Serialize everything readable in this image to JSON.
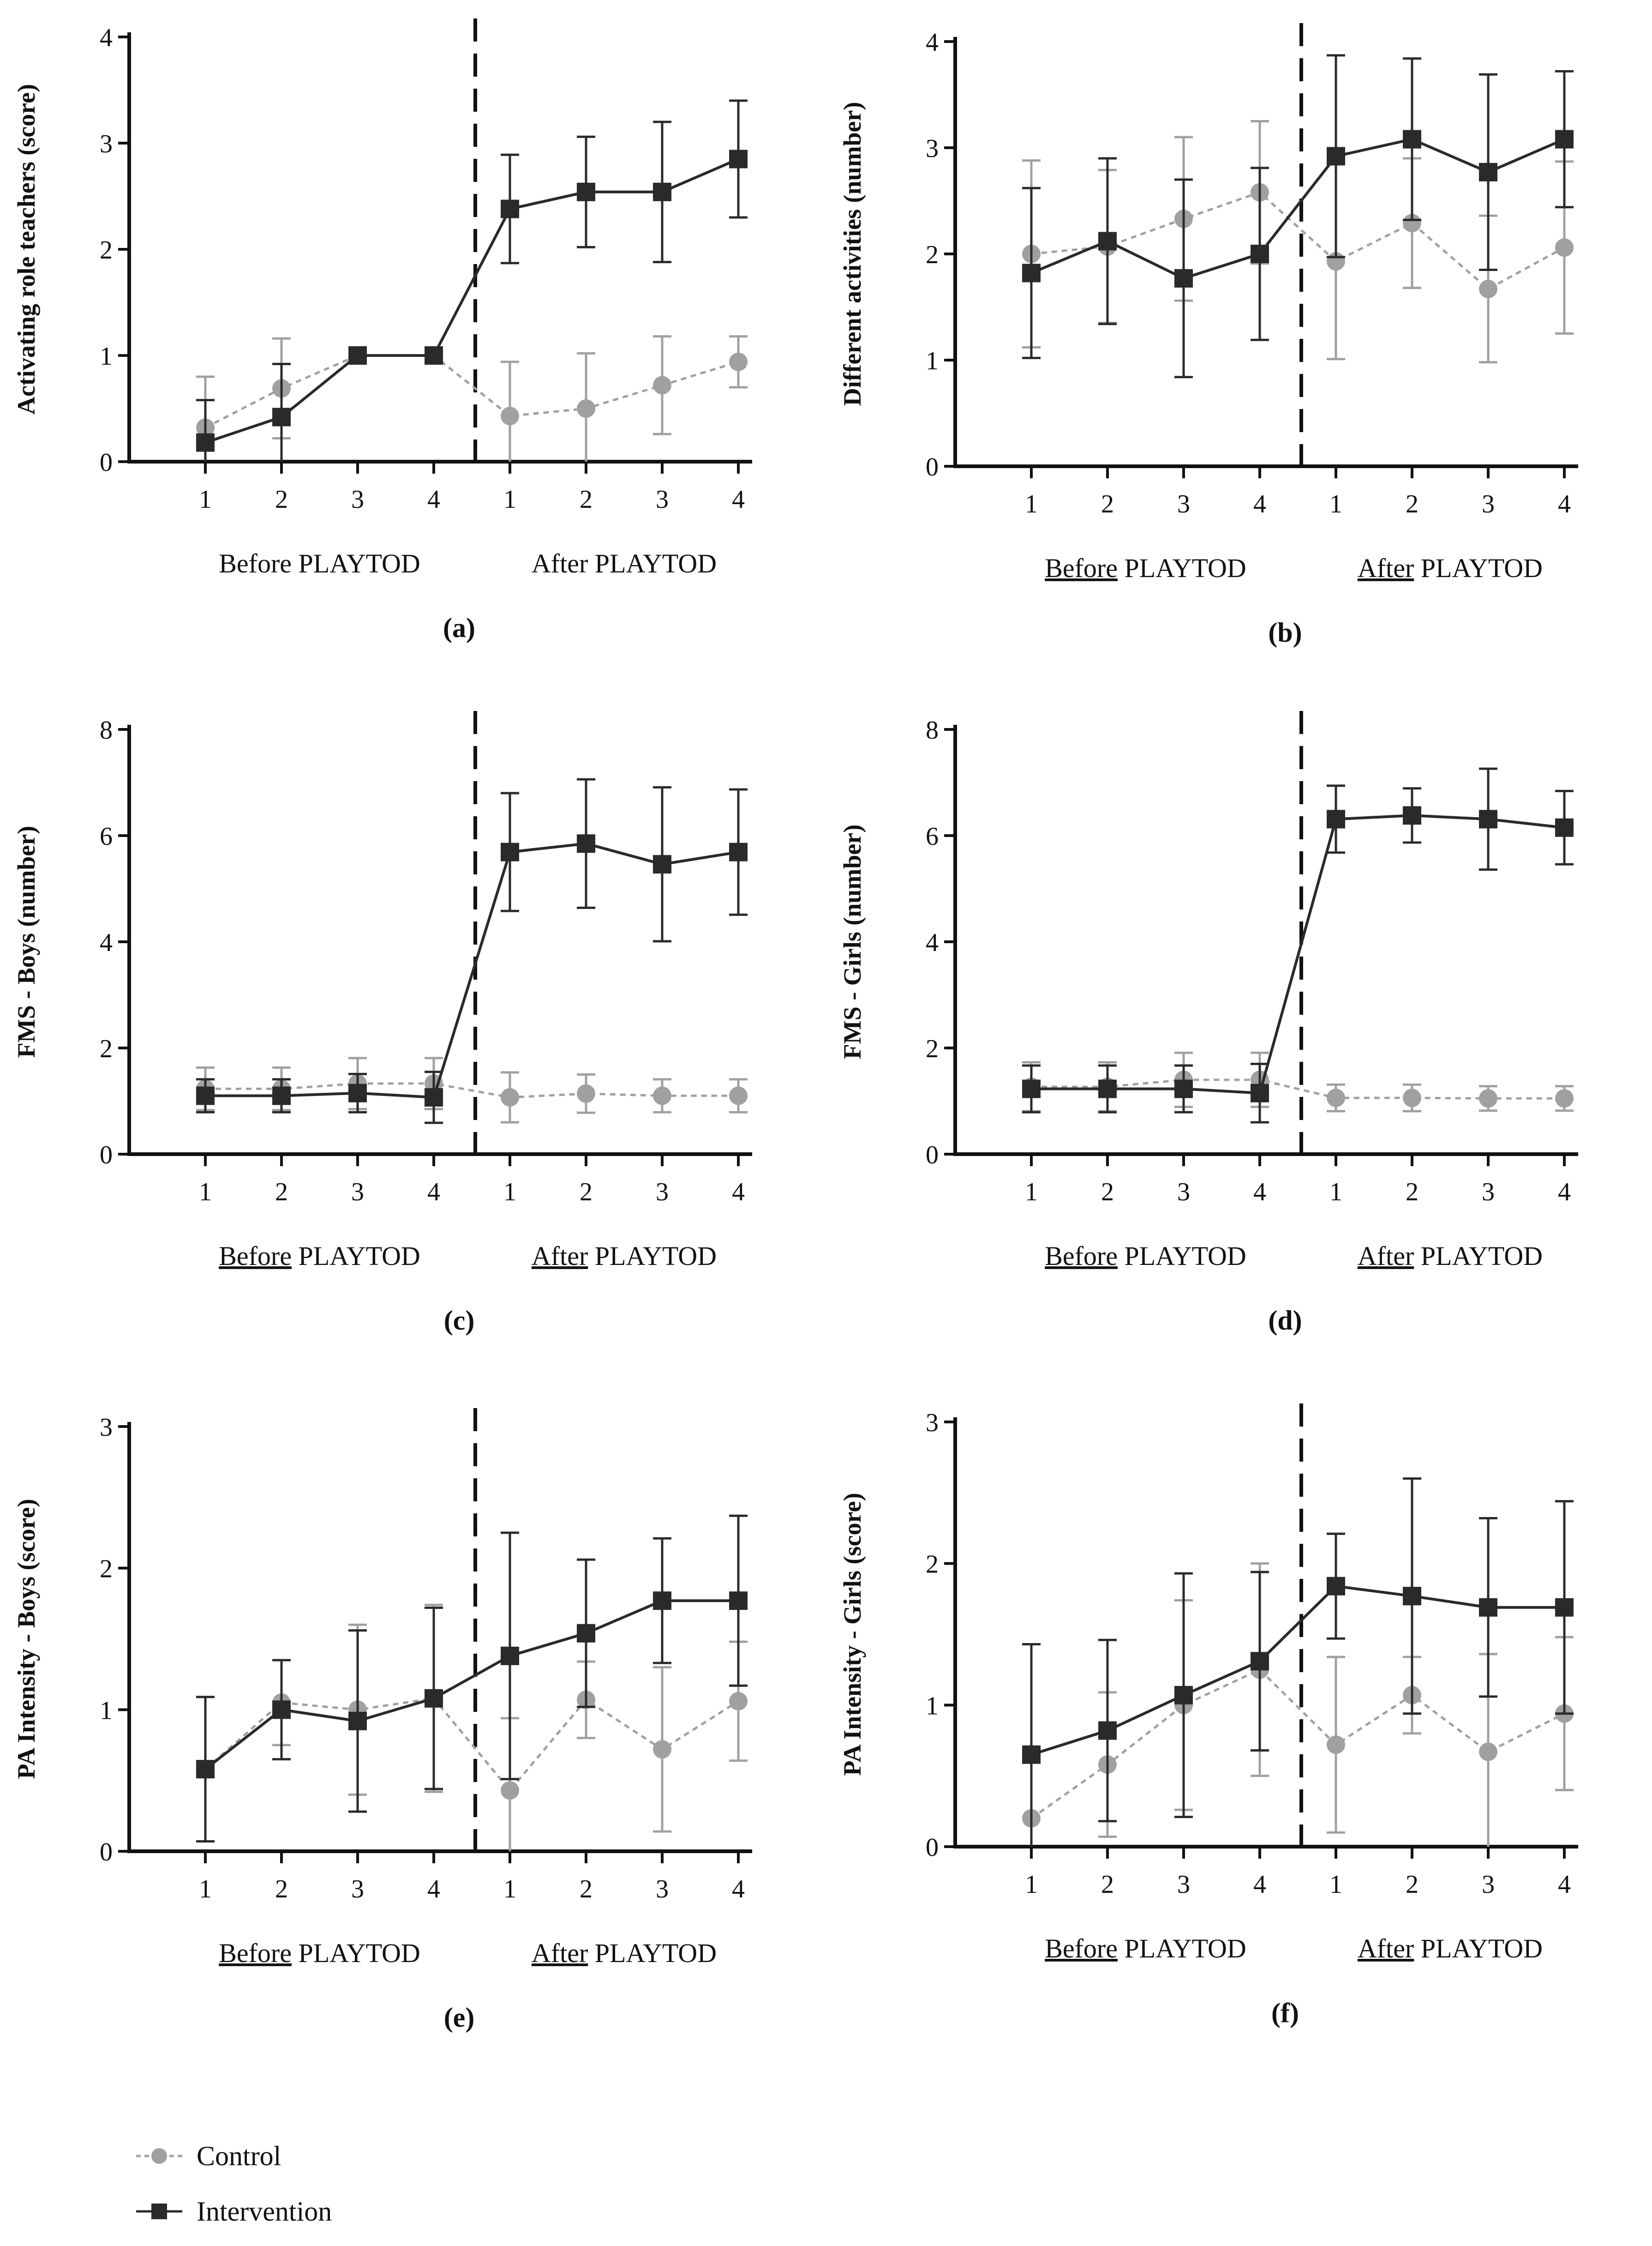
{
  "chart_data": [
    {
      "type": "line",
      "panel_label": "(a)",
      "ylabel": "Activating role teachers (score)",
      "ylim": [
        0,
        4
      ],
      "yticks": [
        0,
        1,
        2,
        3,
        4
      ],
      "categories": [
        "1",
        "2",
        "3",
        "4",
        "1",
        "2",
        "3",
        "4"
      ],
      "groups": [
        {
          "label_underlined": "",
          "label_rest": "Before PLAYTOD"
        },
        {
          "label_underlined": "",
          "label_rest": "After PLAYTOD"
        }
      ],
      "series": [
        {
          "name": "Control",
          "values": [
            0.32,
            0.69,
            1.0,
            1.0,
            0.43,
            0.5,
            0.72,
            0.94
          ],
          "err": [
            0.48,
            0.47,
            0,
            0,
            0.51,
            0.52,
            0.46,
            0.24
          ]
        },
        {
          "name": "Intervention",
          "values": [
            0.18,
            0.42,
            1.0,
            1.0,
            2.38,
            2.54,
            2.54,
            2.85
          ],
          "err": [
            0.4,
            0.5,
            0,
            0,
            0.51,
            0.52,
            0.66,
            0.55
          ]
        }
      ]
    },
    {
      "type": "line",
      "panel_label": "(b)",
      "ylabel": "Different activities (number)",
      "ylim": [
        0,
        4
      ],
      "yticks": [
        0,
        1,
        2,
        3,
        4
      ],
      "categories": [
        "1",
        "2",
        "3",
        "4",
        "1",
        "2",
        "3",
        "4"
      ],
      "groups": [
        {
          "label_underlined": "Before",
          "label_rest": " PLAYTOD"
        },
        {
          "label_underlined": "After",
          "label_rest": " PLAYTOD"
        }
      ],
      "series": [
        {
          "name": "Control",
          "values": [
            2.0,
            2.07,
            2.33,
            2.58,
            1.93,
            2.29,
            1.67,
            2.06
          ],
          "err": [
            0.88,
            0.72,
            0.77,
            0.67,
            0.92,
            0.61,
            0.69,
            0.81
          ]
        },
        {
          "name": "Intervention",
          "values": [
            1.82,
            2.12,
            1.77,
            2.0,
            2.92,
            3.08,
            2.77,
            3.08
          ],
          "err": [
            0.8,
            0.78,
            0.93,
            0.81,
            0.95,
            0.76,
            0.92,
            0.64
          ]
        }
      ]
    },
    {
      "type": "line",
      "panel_label": "(c)",
      "ylabel": "FMS - Boys (number)",
      "ylim": [
        0,
        8
      ],
      "yticks": [
        0,
        2,
        4,
        6,
        8
      ],
      "categories": [
        "1",
        "2",
        "3",
        "4",
        "1",
        "2",
        "3",
        "4"
      ],
      "groups": [
        {
          "label_underlined": "Before",
          "label_rest": " PLAYTOD"
        },
        {
          "label_underlined": "After",
          "label_rest": " PLAYTOD"
        }
      ],
      "series": [
        {
          "name": "Control",
          "values": [
            1.23,
            1.23,
            1.33,
            1.33,
            1.07,
            1.14,
            1.1,
            1.1
          ],
          "err": [
            0.4,
            0.4,
            0.48,
            0.48,
            0.47,
            0.36,
            0.31,
            0.31
          ]
        },
        {
          "name": "Intervention",
          "values": [
            1.1,
            1.1,
            1.15,
            1.07,
            5.69,
            5.85,
            5.46,
            5.69
          ],
          "err": [
            0.31,
            0.31,
            0.36,
            0.48,
            1.11,
            1.21,
            1.45,
            1.18
          ]
        }
      ]
    },
    {
      "type": "line",
      "panel_label": "(d)",
      "ylabel": "FMS - Girls (number)",
      "ylim": [
        0,
        8
      ],
      "yticks": [
        0,
        2,
        4,
        6,
        8
      ],
      "categories": [
        "1",
        "2",
        "3",
        "4",
        "1",
        "2",
        "3",
        "4"
      ],
      "groups": [
        {
          "label_underlined": "Before",
          "label_rest": " PLAYTOD"
        },
        {
          "label_underlined": "After",
          "label_rest": " PLAYTOD"
        }
      ],
      "series": [
        {
          "name": "Control",
          "values": [
            1.27,
            1.27,
            1.4,
            1.4,
            1.06,
            1.06,
            1.05,
            1.05
          ],
          "err": [
            0.46,
            0.46,
            0.51,
            0.51,
            0.25,
            0.25,
            0.23,
            0.23
          ]
        },
        {
          "name": "Intervention",
          "values": [
            1.23,
            1.23,
            1.23,
            1.15,
            6.31,
            6.38,
            6.31,
            6.15
          ],
          "err": [
            0.44,
            0.44,
            0.44,
            0.55,
            0.63,
            0.51,
            0.95,
            0.69
          ]
        }
      ]
    },
    {
      "type": "line",
      "panel_label": "(e)",
      "ylabel": "PA Intensity - Boys (score)",
      "ylim": [
        0,
        3
      ],
      "yticks": [
        0,
        1,
        2,
        3
      ],
      "categories": [
        "1",
        "2",
        "3",
        "4",
        "1",
        "2",
        "3",
        "4"
      ],
      "groups": [
        {
          "label_underlined": "Before",
          "label_rest": " PLAYTOD"
        },
        {
          "label_underlined": "After",
          "label_rest": " PLAYTOD"
        }
      ],
      "series": [
        {
          "name": "Control",
          "values": [
            0.58,
            1.05,
            1.0,
            1.08,
            0.43,
            1.07,
            0.72,
            1.06
          ],
          "err": [
            0.51,
            0.3,
            0.6,
            0.66,
            0.51,
            0.27,
            0.58,
            0.42
          ]
        },
        {
          "name": "Intervention",
          "values": [
            0.58,
            1.0,
            0.92,
            1.08,
            1.38,
            1.54,
            1.77,
            1.77
          ],
          "err": [
            0.51,
            0.35,
            0.64,
            0.64,
            0.87,
            0.52,
            0.44,
            0.6
          ]
        }
      ]
    },
    {
      "type": "line",
      "panel_label": "(f)",
      "ylabel": "PA Intensity - Girls (score)",
      "ylim": [
        0,
        3
      ],
      "yticks": [
        0,
        1,
        2,
        3
      ],
      "categories": [
        "1",
        "2",
        "3",
        "4",
        "1",
        "2",
        "3",
        "4"
      ],
      "groups": [
        {
          "label_underlined": "Before",
          "label_rest": " PLAYTOD"
        },
        {
          "label_underlined": "After",
          "label_rest": " PLAYTOD"
        }
      ],
      "series": [
        {
          "name": "Control",
          "values": [
            0.2,
            0.58,
            1.0,
            1.25,
            0.72,
            1.07,
            0.67,
            0.94
          ],
          "err": [
            0.41,
            0.51,
            0.74,
            0.75,
            0.62,
            0.27,
            0.69,
            0.54
          ]
        },
        {
          "name": "Intervention",
          "values": [
            0.65,
            0.82,
            1.07,
            1.31,
            1.84,
            1.77,
            1.69,
            1.69
          ],
          "err": [
            0.78,
            0.64,
            0.86,
            0.63,
            0.37,
            0.83,
            0.63,
            0.75
          ]
        }
      ]
    }
  ],
  "legend": {
    "items": [
      {
        "name": "Control",
        "color": "#a0a0a0",
        "marker": "circle",
        "line": "dashed"
      },
      {
        "name": "Intervention",
        "color": "#2a2a2a",
        "marker": "square",
        "line": "solid"
      }
    ]
  },
  "colors": {
    "control": "#a0a0a0",
    "intervention": "#2a2a2a",
    "axis": "#111111"
  }
}
